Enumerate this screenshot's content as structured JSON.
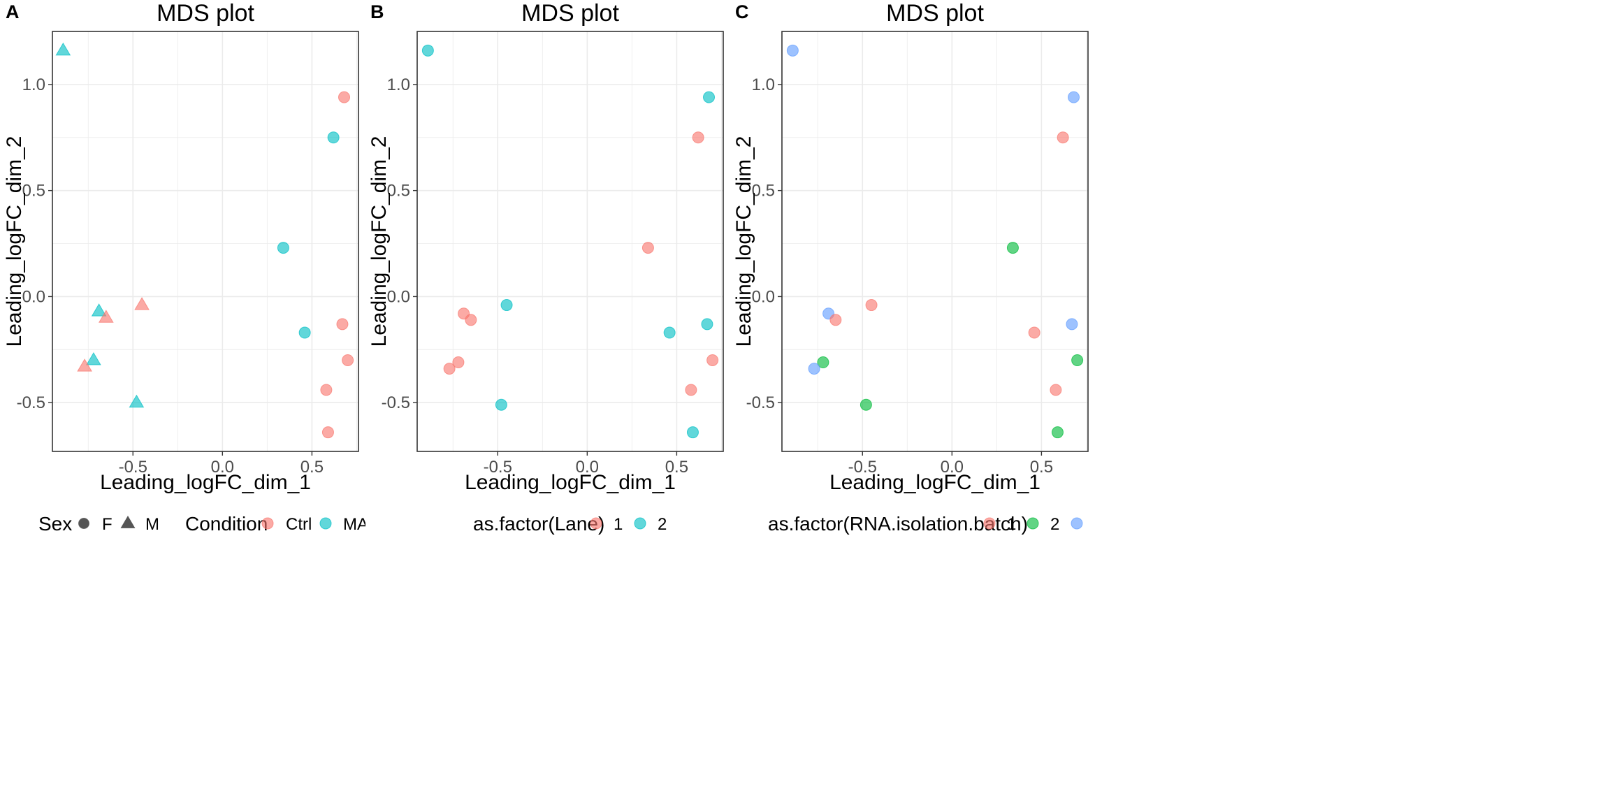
{
  "colors": {
    "red": "#F8766D",
    "cyan": "#00BFC4",
    "green": "#00BA38",
    "blue": "#619CFF",
    "grid": "#ebebeb",
    "border": "#333333",
    "legend_key": "#555555"
  },
  "chart_data": [
    {
      "type": "scatter",
      "panel_label": "A",
      "title": "MDS plot",
      "xlabel": "Leading_logFC_dim_1",
      "ylabel": "Leading_logFC_dim_2",
      "xlim": [
        -0.95,
        0.76
      ],
      "ylim": [
        -0.73,
        1.25
      ],
      "xticks": [
        -0.5,
        0.0,
        0.5
      ],
      "xtick_labels": [
        "-0.5",
        "0.0",
        "0.5"
      ],
      "yticks": [
        -0.5,
        0.0,
        0.5,
        1.0
      ],
      "ytick_labels": [
        "-0.5",
        "0.0",
        "0.5",
        "1.0"
      ],
      "grid": true,
      "legends": [
        {
          "title": "Sex",
          "entries": [
            {
              "label": "F",
              "shape": "circle",
              "color": "#555555"
            },
            {
              "label": "M",
              "shape": "triangle",
              "color": "#555555"
            }
          ]
        },
        {
          "title": "Condition",
          "entries": [
            {
              "label": "Ctrl",
              "shape": "circle",
              "color": "#F8766D"
            },
            {
              "label": "MAF",
              "shape": "circle",
              "color": "#00BFC4"
            }
          ]
        }
      ],
      "points": [
        {
          "x": -0.89,
          "y": 1.16,
          "color": "#00BFC4",
          "shape": "triangle"
        },
        {
          "x": 0.68,
          "y": 0.94,
          "color": "#F8766D",
          "shape": "circle"
        },
        {
          "x": 0.62,
          "y": 0.75,
          "color": "#00BFC4",
          "shape": "circle"
        },
        {
          "x": 0.34,
          "y": 0.23,
          "color": "#00BFC4",
          "shape": "circle"
        },
        {
          "x": -0.45,
          "y": -0.04,
          "color": "#F8766D",
          "shape": "triangle"
        },
        {
          "x": -0.69,
          "y": -0.07,
          "color": "#00BFC4",
          "shape": "triangle"
        },
        {
          "x": -0.65,
          "y": -0.1,
          "color": "#F8766D",
          "shape": "triangle"
        },
        {
          "x": 0.67,
          "y": -0.13,
          "color": "#F8766D",
          "shape": "circle"
        },
        {
          "x": 0.46,
          "y": -0.17,
          "color": "#00BFC4",
          "shape": "circle"
        },
        {
          "x": 0.7,
          "y": -0.3,
          "color": "#F8766D",
          "shape": "circle"
        },
        {
          "x": -0.72,
          "y": -0.3,
          "color": "#00BFC4",
          "shape": "triangle"
        },
        {
          "x": -0.77,
          "y": -0.33,
          "color": "#F8766D",
          "shape": "triangle"
        },
        {
          "x": 0.58,
          "y": -0.44,
          "color": "#F8766D",
          "shape": "circle"
        },
        {
          "x": -0.48,
          "y": -0.5,
          "color": "#00BFC4",
          "shape": "triangle"
        },
        {
          "x": 0.59,
          "y": -0.64,
          "color": "#F8766D",
          "shape": "circle"
        }
      ]
    },
    {
      "type": "scatter",
      "panel_label": "B",
      "title": "MDS plot",
      "xlabel": "Leading_logFC_dim_1",
      "ylabel": "Leading_logFC_dim_2",
      "xlim": [
        -0.95,
        0.76
      ],
      "ylim": [
        -0.73,
        1.25
      ],
      "xticks": [
        -0.5,
        0.0,
        0.5
      ],
      "xtick_labels": [
        "-0.5",
        "0.0",
        "0.5"
      ],
      "yticks": [
        -0.5,
        0.0,
        0.5,
        1.0
      ],
      "ytick_labels": [
        "-0.5",
        "0.0",
        "0.5",
        "1.0"
      ],
      "grid": true,
      "legends": [
        {
          "title": "as.factor(Lane)",
          "entries": [
            {
              "label": "1",
              "shape": "circle",
              "color": "#F8766D"
            },
            {
              "label": "2",
              "shape": "circle",
              "color": "#00BFC4"
            }
          ]
        }
      ],
      "points": [
        {
          "x": -0.89,
          "y": 1.16,
          "color": "#00BFC4",
          "shape": "circle"
        },
        {
          "x": 0.68,
          "y": 0.94,
          "color": "#00BFC4",
          "shape": "circle"
        },
        {
          "x": 0.62,
          "y": 0.75,
          "color": "#F8766D",
          "shape": "circle"
        },
        {
          "x": 0.34,
          "y": 0.23,
          "color": "#F8766D",
          "shape": "circle"
        },
        {
          "x": -0.45,
          "y": -0.04,
          "color": "#00BFC4",
          "shape": "circle"
        },
        {
          "x": -0.69,
          "y": -0.08,
          "color": "#F8766D",
          "shape": "circle"
        },
        {
          "x": -0.65,
          "y": -0.11,
          "color": "#F8766D",
          "shape": "circle"
        },
        {
          "x": 0.67,
          "y": -0.13,
          "color": "#00BFC4",
          "shape": "circle"
        },
        {
          "x": 0.46,
          "y": -0.17,
          "color": "#00BFC4",
          "shape": "circle"
        },
        {
          "x": 0.7,
          "y": -0.3,
          "color": "#F8766D",
          "shape": "circle"
        },
        {
          "x": -0.72,
          "y": -0.31,
          "color": "#F8766D",
          "shape": "circle"
        },
        {
          "x": -0.77,
          "y": -0.34,
          "color": "#F8766D",
          "shape": "circle"
        },
        {
          "x": 0.58,
          "y": -0.44,
          "color": "#F8766D",
          "shape": "circle"
        },
        {
          "x": -0.48,
          "y": -0.51,
          "color": "#00BFC4",
          "shape": "circle"
        },
        {
          "x": 0.59,
          "y": -0.64,
          "color": "#00BFC4",
          "shape": "circle"
        }
      ]
    },
    {
      "type": "scatter",
      "panel_label": "C",
      "title": "MDS plot",
      "xlabel": "Leading_logFC_dim_1",
      "ylabel": "Leading_logFC_dim_2",
      "xlim": [
        -0.95,
        0.76
      ],
      "ylim": [
        -0.73,
        1.25
      ],
      "xticks": [
        -0.5,
        0.0,
        0.5
      ],
      "xtick_labels": [
        "-0.5",
        "0.0",
        "0.5"
      ],
      "yticks": [
        -0.5,
        0.0,
        0.5,
        1.0
      ],
      "ytick_labels": [
        "-0.5",
        "0.0",
        "0.5",
        "1.0"
      ],
      "grid": true,
      "legends": [
        {
          "title": "as.factor(RNA.isolation.batch)",
          "entries": [
            {
              "label": "1",
              "shape": "circle",
              "color": "#F8766D"
            },
            {
              "label": "2",
              "shape": "circle",
              "color": "#00BA38"
            },
            {
              "label": "",
              "shape": "circle",
              "color": "#619CFF"
            }
          ]
        }
      ],
      "points": [
        {
          "x": -0.89,
          "y": 1.16,
          "color": "#619CFF",
          "shape": "circle"
        },
        {
          "x": 0.68,
          "y": 0.94,
          "color": "#619CFF",
          "shape": "circle"
        },
        {
          "x": 0.62,
          "y": 0.75,
          "color": "#F8766D",
          "shape": "circle"
        },
        {
          "x": 0.34,
          "y": 0.23,
          "color": "#00BA38",
          "shape": "circle"
        },
        {
          "x": -0.45,
          "y": -0.04,
          "color": "#F8766D",
          "shape": "circle"
        },
        {
          "x": -0.69,
          "y": -0.08,
          "color": "#619CFF",
          "shape": "circle"
        },
        {
          "x": -0.65,
          "y": -0.11,
          "color": "#F8766D",
          "shape": "circle"
        },
        {
          "x": 0.67,
          "y": -0.13,
          "color": "#619CFF",
          "shape": "circle"
        },
        {
          "x": 0.46,
          "y": -0.17,
          "color": "#F8766D",
          "shape": "circle"
        },
        {
          "x": 0.7,
          "y": -0.3,
          "color": "#00BA38",
          "shape": "circle"
        },
        {
          "x": -0.72,
          "y": -0.31,
          "color": "#00BA38",
          "shape": "circle"
        },
        {
          "x": -0.77,
          "y": -0.34,
          "color": "#619CFF",
          "shape": "circle"
        },
        {
          "x": 0.58,
          "y": -0.44,
          "color": "#F8766D",
          "shape": "circle"
        },
        {
          "x": -0.48,
          "y": -0.51,
          "color": "#00BA38",
          "shape": "circle"
        },
        {
          "x": 0.59,
          "y": -0.64,
          "color": "#00BA38",
          "shape": "circle"
        }
      ]
    }
  ]
}
